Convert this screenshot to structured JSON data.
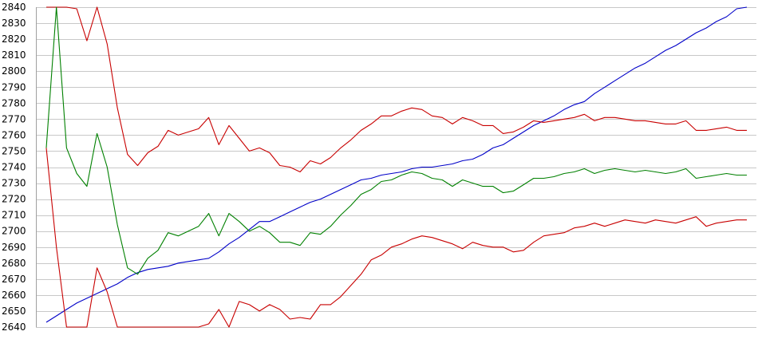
{
  "chart_data": {
    "type": "line",
    "title": "",
    "xlabel": "",
    "ylabel": "",
    "ylim": [
      2640,
      2840
    ],
    "yticks": [
      2640,
      2650,
      2660,
      2670,
      2680,
      2690,
      2700,
      2710,
      2720,
      2730,
      2740,
      2750,
      2760,
      2770,
      2780,
      2790,
      2800,
      2810,
      2820,
      2830,
      2840
    ],
    "grid": true,
    "legend": "none",
    "x_points": 70,
    "series": [
      {
        "color": "#0000c8",
        "values": [
          2643,
          2647,
          2651,
          2655,
          2658,
          2661,
          2664,
          2667,
          2671,
          2674,
          2676,
          2677,
          2678,
          2680,
          2681,
          2682,
          2683,
          2687,
          2692,
          2696,
          2701,
          2706,
          2706,
          2709,
          2712,
          2715,
          2718,
          2720,
          2723,
          2726,
          2729,
          2732,
          2733,
          2735,
          2736,
          2737,
          2739,
          2740,
          2740,
          2741,
          2742,
          2744,
          2745,
          2748,
          2752,
          2754,
          2758,
          2762,
          2766,
          2769,
          2772,
          2776,
          2779,
          2781,
          2786,
          2790,
          2794,
          2798,
          2802,
          2805,
          2809,
          2813,
          2816,
          2820,
          2824,
          2827,
          2831,
          2834,
          2839,
          2840
        ]
      },
      {
        "color": "#c80000",
        "values": [
          2840,
          2840,
          2840,
          2839,
          2819,
          2840,
          2817,
          2777,
          2748,
          2741,
          2749,
          2753,
          2763,
          2760,
          2762,
          2764,
          2771,
          2754,
          2766,
          2758,
          2750,
          2752,
          2749,
          2741,
          2740,
          2737,
          2744,
          2742,
          2746,
          2752,
          2757,
          2763,
          2767,
          2772,
          2772,
          2775,
          2777,
          2776,
          2772,
          2771,
          2767,
          2771,
          2769,
          2766,
          2766,
          2761,
          2762,
          2765,
          2769,
          2768,
          2769,
          2770,
          2771,
          2773,
          2769,
          2771,
          2771,
          2770,
          2769,
          2769,
          2768,
          2767,
          2767,
          2769,
          2763,
          2763,
          2764,
          2765,
          2763,
          2763
        ]
      },
      {
        "color": "#008000",
        "values": [
          2752,
          2840,
          2752,
          2736,
          2728,
          2761,
          2740,
          2704,
          2677,
          2673,
          2683,
          2688,
          2699,
          2697,
          2700,
          2703,
          2711,
          2697,
          2711,
          2706,
          2700,
          2703,
          2699,
          2693,
          2693,
          2691,
          2699,
          2698,
          2703,
          2710,
          2716,
          2723,
          2726,
          2731,
          2732,
          2735,
          2737,
          2736,
          2733,
          2732,
          2728,
          2732,
          2730,
          2728,
          2728,
          2724,
          2725,
          2729,
          2733,
          2733,
          2734,
          2736,
          2737,
          2739,
          2736,
          2738,
          2739,
          2738,
          2737,
          2738,
          2737,
          2736,
          2737,
          2739,
          2733,
          2734,
          2735,
          2736,
          2735,
          2735
        ]
      },
      {
        "color": "#c80000",
        "values": [
          2752,
          2690,
          2640,
          2640,
          2640,
          2677,
          2662,
          2640,
          2640,
          2640,
          2640,
          2640,
          2640,
          2640,
          2640,
          2640,
          2642,
          2651,
          2640,
          2656,
          2654,
          2650,
          2654,
          2651,
          2645,
          2646,
          2645,
          2654,
          2654,
          2659,
          2666,
          2673,
          2682,
          2685,
          2690,
          2692,
          2695,
          2697,
          2696,
          2694,
          2692,
          2689,
          2693,
          2691,
          2690,
          2690,
          2687,
          2688,
          2693,
          2697,
          2698,
          2699,
          2702,
          2703,
          2705,
          2703,
          2705,
          2707,
          2706,
          2705,
          2707,
          2706,
          2705,
          2707,
          2709,
          2703,
          2705,
          2706,
          2707,
          2707
        ]
      }
    ]
  }
}
